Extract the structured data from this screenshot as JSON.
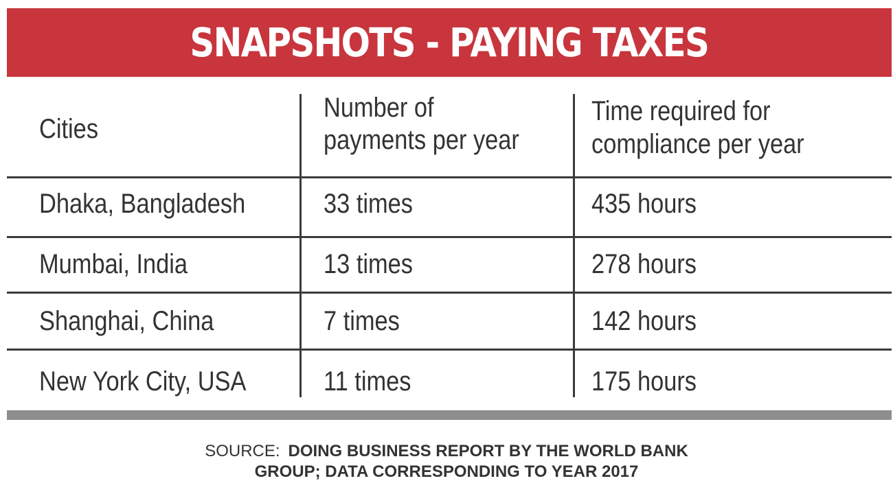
{
  "title": "SNAPSHOTS - PAYING TAXES",
  "colors": {
    "banner": "#c8353d",
    "text": "#333333",
    "rules": "#3a3a3a",
    "footer_bar": "#8e8e8e"
  },
  "chart_data": {
    "type": "table",
    "title": "SNAPSHOTS - PAYING TAXES",
    "columns": [
      "Cities",
      "Number of payments per year",
      "Time required for compliance per year"
    ],
    "column_lines": [
      [
        "Cities"
      ],
      [
        "Number of",
        "payments per year"
      ],
      [
        "Time required for",
        "compliance per year"
      ]
    ],
    "rows": [
      [
        "Dhaka, Bangladesh",
        "33 times",
        "435 hours"
      ],
      [
        "Mumbai, India",
        "13 times",
        "278 hours"
      ],
      [
        "Shanghai, China",
        "7 times",
        "142 hours"
      ],
      [
        "New York City, USA",
        "11 times",
        "175 hours"
      ]
    ]
  },
  "source": {
    "label": "SOURCE:",
    "line1": "DOING BUSINESS REPORT BY THE WORLD BANK",
    "line2": "GROUP; DATA CORRESPONDING TO YEAR 2017"
  }
}
